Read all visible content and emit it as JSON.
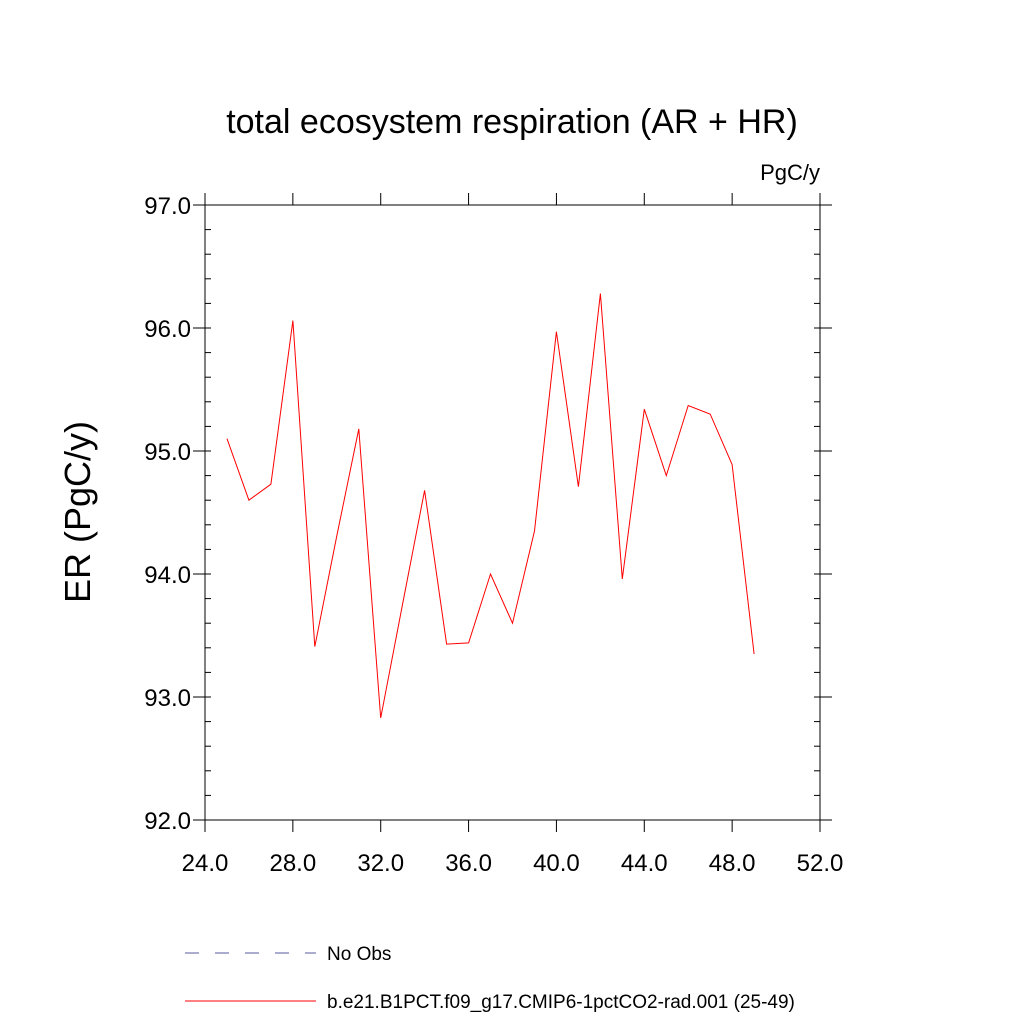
{
  "chart_data": {
    "type": "line",
    "title": "total ecosystem respiration (AR + HR)",
    "units": "PgC/y",
    "ylabel": "ER  (PgC/y)",
    "xlabel": "",
    "xlim": [
      24,
      52
    ],
    "ylim": [
      92,
      97
    ],
    "xticks": [
      24,
      28,
      32,
      36,
      40,
      44,
      48,
      52
    ],
    "xtick_labels": [
      "24.0",
      "28.0",
      "32.0",
      "36.0",
      "40.0",
      "44.0",
      "48.0",
      "52.0"
    ],
    "yticks": [
      92,
      93,
      94,
      95,
      96,
      97
    ],
    "ytick_labels": [
      "92.0",
      "93.0",
      "94.0",
      "95.0",
      "96.0",
      "97.0"
    ],
    "grid": false,
    "legend_position": "bottom",
    "series": [
      {
        "name": "b.e21.B1PCT.f09_g17.CMIP6-1pctCO2-rad.001 (25-49)",
        "color": "#ff0000",
        "style": "solid",
        "x": [
          25,
          26,
          27,
          28,
          29,
          30,
          31,
          32,
          33,
          34,
          35,
          36,
          37,
          38,
          39,
          40,
          41,
          42,
          43,
          44,
          45,
          46,
          47,
          48,
          49
        ],
        "y": [
          95.1,
          94.6,
          94.73,
          96.06,
          93.41,
          94.31,
          95.18,
          92.83,
          93.76,
          94.68,
          93.43,
          93.44,
          94.0,
          93.6,
          94.35,
          95.97,
          94.71,
          96.28,
          93.96,
          95.34,
          94.8,
          95.37,
          95.3,
          94.89,
          93.35
        ]
      },
      {
        "name": "No Obs",
        "color": "#5a5aa0",
        "style": "dashed",
        "x": [],
        "y": []
      }
    ]
  }
}
